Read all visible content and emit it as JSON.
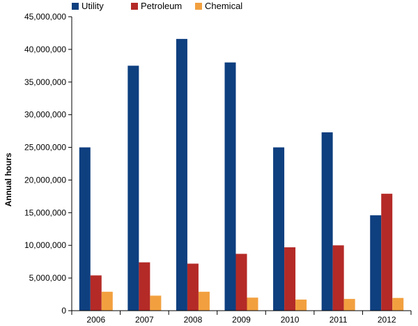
{
  "chart_data": {
    "type": "bar",
    "categories": [
      "2006",
      "2007",
      "2008",
      "2009",
      "2010",
      "2011",
      "2012"
    ],
    "series": [
      {
        "name": "Utility",
        "color": "#0e3f7f",
        "values": [
          25000000,
          37500000,
          41600000,
          38000000,
          25000000,
          27300000,
          14600000
        ]
      },
      {
        "name": "Petroleum",
        "color": "#b42a27",
        "values": [
          5400000,
          7400000,
          7200000,
          8700000,
          9700000,
          10000000,
          17900000
        ]
      },
      {
        "name": "Chemical",
        "color": "#f2a03f",
        "values": [
          2900000,
          2300000,
          2900000,
          2000000,
          1700000,
          1800000,
          1950000
        ]
      }
    ],
    "title": "",
    "xlabel": "",
    "ylabel": "Annual hours",
    "ylim": [
      0,
      45000000
    ],
    "yticks": [
      0,
      5000000,
      10000000,
      15000000,
      20000000,
      25000000,
      30000000,
      35000000,
      40000000,
      45000000
    ],
    "ytick_labels": [
      "0",
      "5,000,000",
      "10,000,000",
      "15,000,000",
      "20,000,000",
      "25,000,000",
      "30,000,000",
      "35,000,000",
      "40,000,000",
      "45,000,000"
    ],
    "legend_position": "top-left",
    "grid": false
  }
}
